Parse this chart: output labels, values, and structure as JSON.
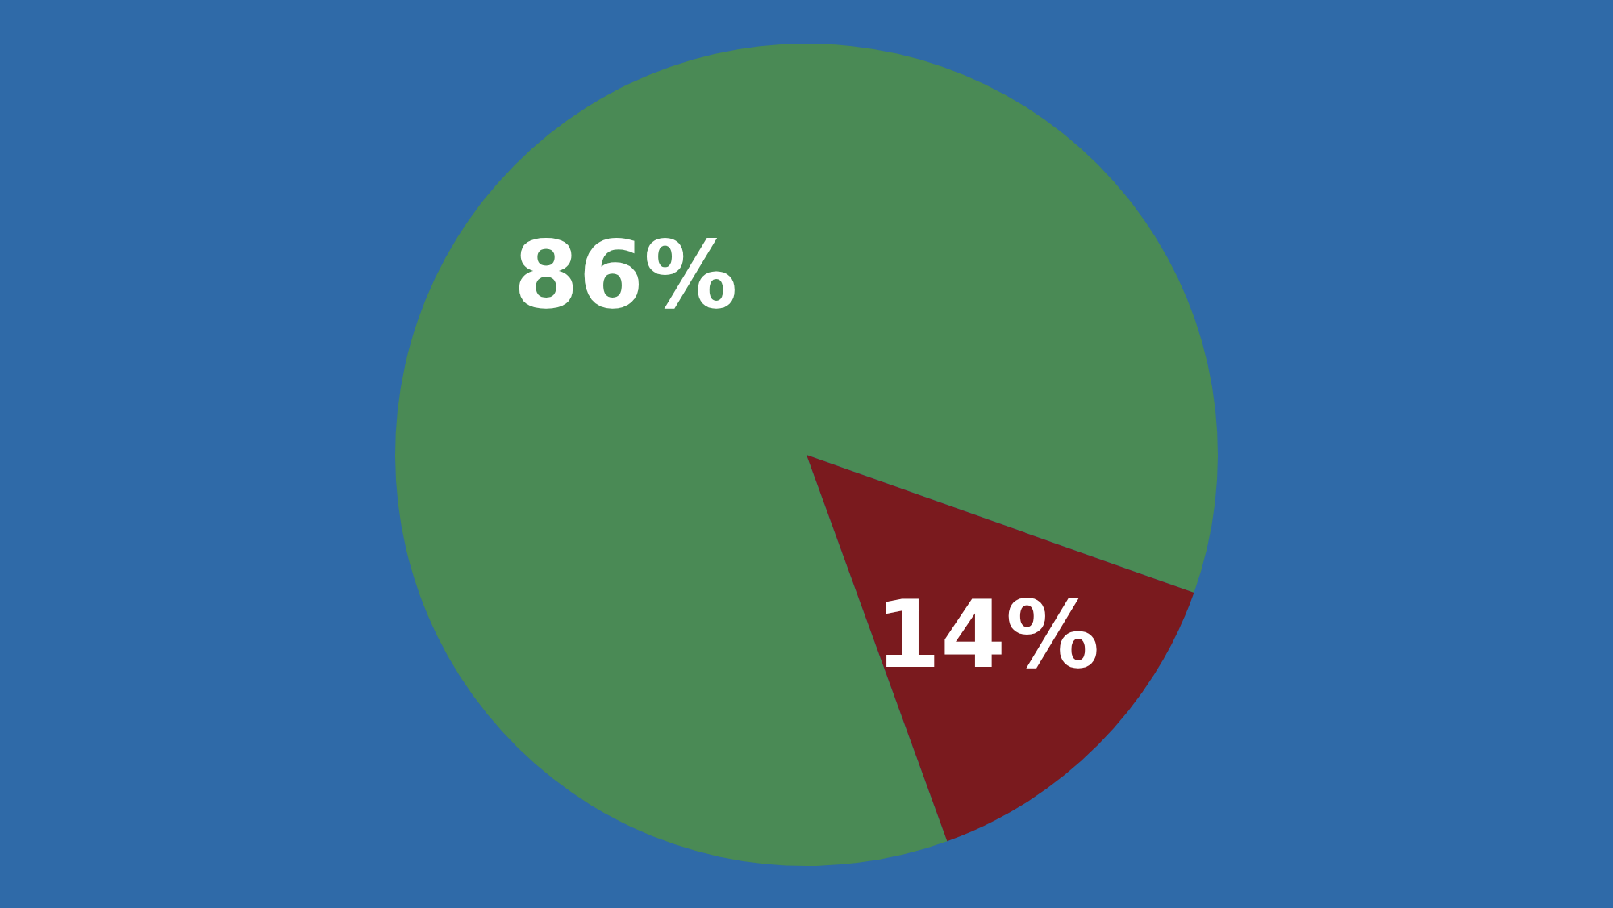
{
  "chart_data": {
    "type": "pie",
    "categories": [
      null,
      null
    ],
    "values": [
      86,
      14
    ],
    "colors": [
      "#4a8a55",
      "#7a1a1e"
    ],
    "value_labels": [
      "86%",
      "14%"
    ]
  }
}
